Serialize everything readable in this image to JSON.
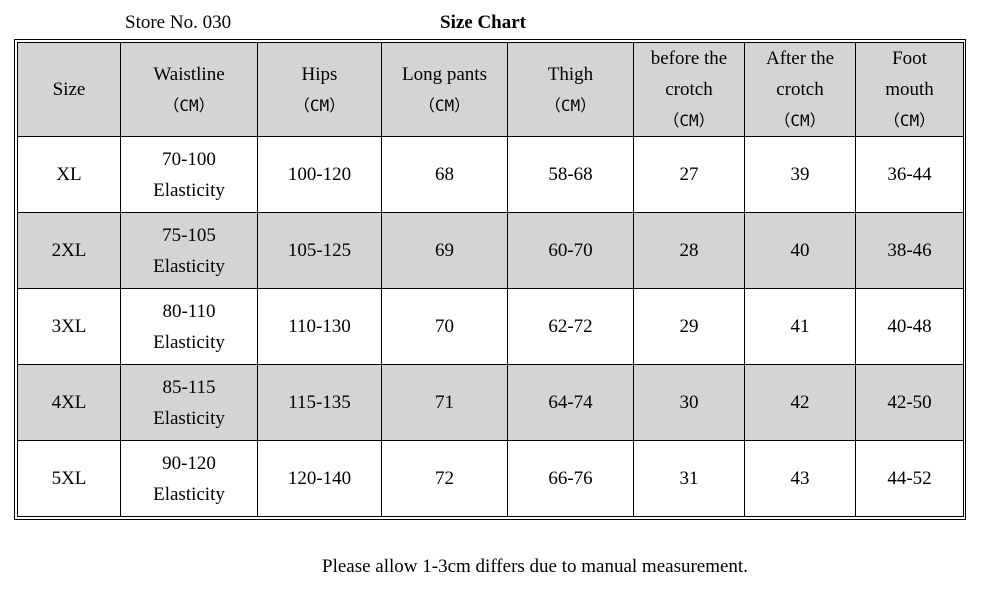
{
  "header": {
    "store": "Store No. 030",
    "title": "Size Chart"
  },
  "table": {
    "columns": [
      [
        "Size"
      ],
      [
        "Waistline",
        "（CM）"
      ],
      [
        "Hips",
        "（CM）"
      ],
      [
        "Long pants",
        "（CM）"
      ],
      [
        "Thigh",
        "（CM）"
      ],
      [
        "before the",
        "crotch",
        "（CM）"
      ],
      [
        "After the",
        "crotch",
        "（CM）"
      ],
      [
        "Foot",
        "mouth",
        "（CM）"
      ]
    ],
    "rows": [
      [
        [
          "XL"
        ],
        [
          "70-100",
          "Elasticity"
        ],
        [
          "100-120"
        ],
        [
          "68"
        ],
        [
          "58-68"
        ],
        [
          "27"
        ],
        [
          "39"
        ],
        [
          "36-44"
        ]
      ],
      [
        [
          "2XL"
        ],
        [
          "75-105",
          "Elasticity"
        ],
        [
          "105-125"
        ],
        [
          "69"
        ],
        [
          "60-70"
        ],
        [
          "28"
        ],
        [
          "40"
        ],
        [
          "38-46"
        ]
      ],
      [
        [
          "3XL"
        ],
        [
          "80-110",
          "Elasticity"
        ],
        [
          "110-130"
        ],
        [
          "70"
        ],
        [
          "62-72"
        ],
        [
          "29"
        ],
        [
          "41"
        ],
        [
          "40-48"
        ]
      ],
      [
        [
          "4XL"
        ],
        [
          "85-115",
          "Elasticity"
        ],
        [
          "115-135"
        ],
        [
          "71"
        ],
        [
          "64-74"
        ],
        [
          "30"
        ],
        [
          "42"
        ],
        [
          "42-50"
        ]
      ],
      [
        [
          "5XL"
        ],
        [
          "90-120",
          "Elasticity"
        ],
        [
          "120-140"
        ],
        [
          "72"
        ],
        [
          "66-76"
        ],
        [
          "31"
        ],
        [
          "43"
        ],
        [
          "44-52"
        ]
      ]
    ]
  },
  "footer": {
    "note": "Please allow 1-3cm differs due to manual measurement."
  }
}
